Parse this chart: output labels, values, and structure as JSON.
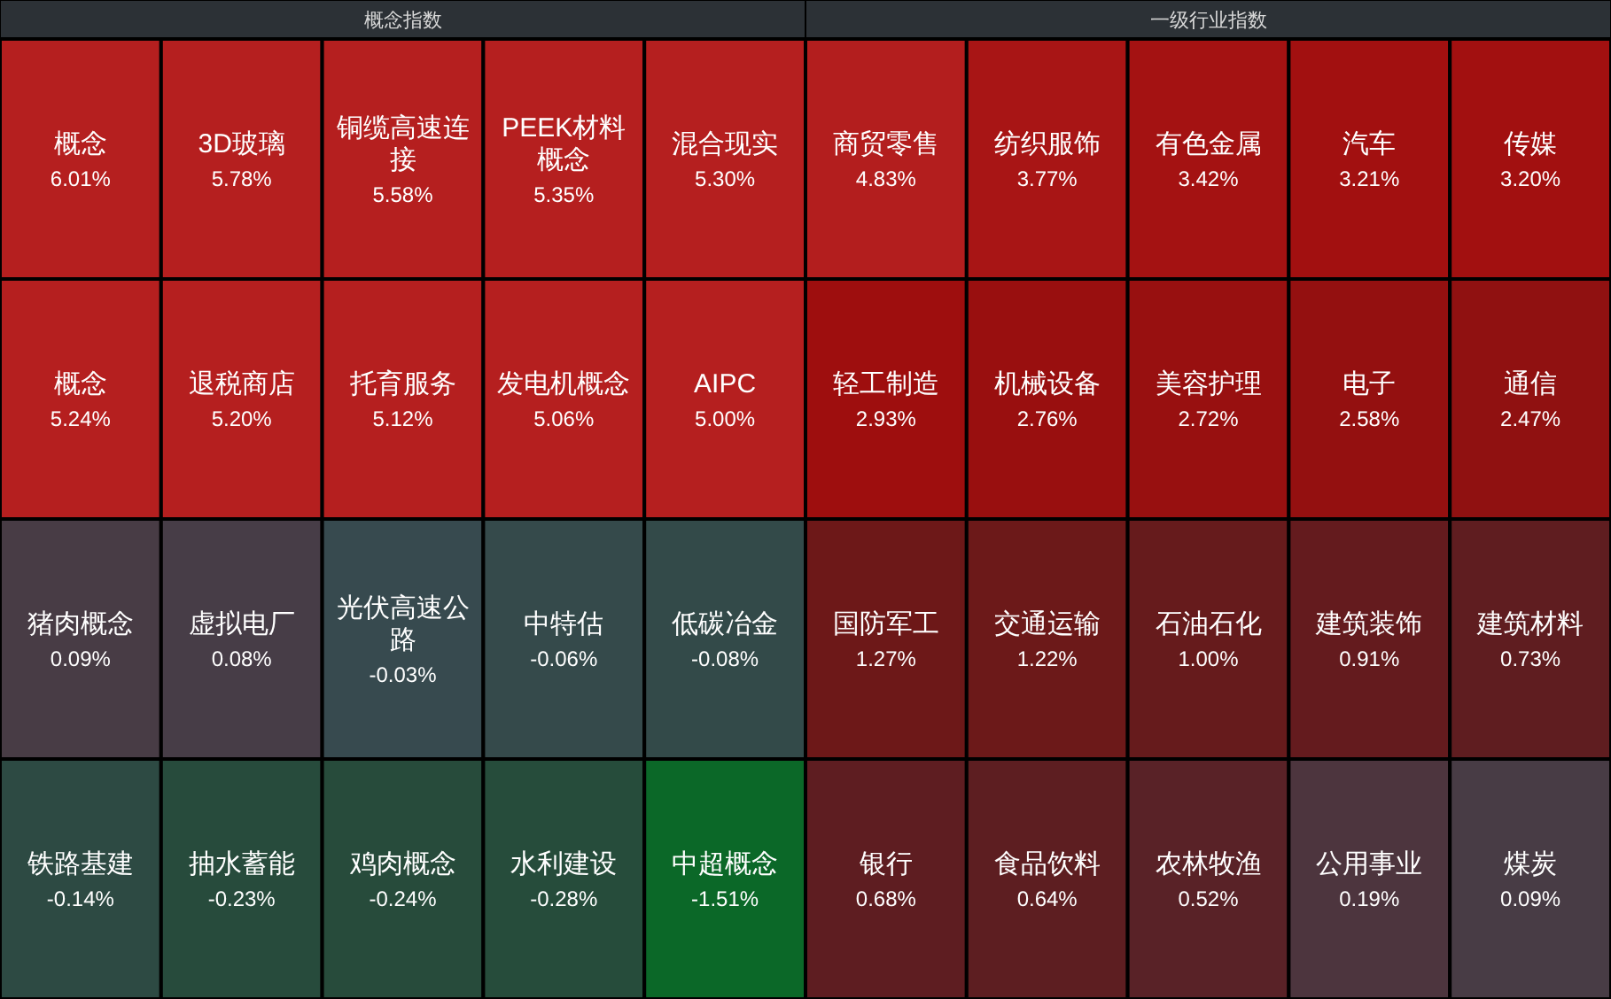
{
  "chart_data": [
    {
      "type": "other",
      "title": "概念指数",
      "categories": [
        "概念",
        "3D玻璃",
        "铜缆高速连接",
        "PEEK材料概念",
        "混合现实",
        "概念",
        "退税商店",
        "托育服务",
        "发电机概念",
        "AIPC",
        "猪肉概念",
        "虚拟电厂",
        "光伏高速公路",
        "中特估",
        "低碳冶金",
        "铁路基建",
        "抽水蓄能",
        "鸡肉概念",
        "水利建设",
        "中超概念"
      ],
      "values": [
        6.01,
        5.78,
        5.58,
        5.35,
        5.3,
        5.24,
        5.2,
        5.12,
        5.06,
        5.0,
        0.09,
        0.08,
        -0.03,
        -0.06,
        -0.08,
        -0.14,
        -0.23,
        -0.24,
        -0.28,
        -1.51
      ],
      "value_labels": [
        "6.01%",
        "5.78%",
        "5.58%",
        "5.35%",
        "5.30%",
        "5.24%",
        "5.20%",
        "5.12%",
        "5.06%",
        "5.00%",
        "0.09%",
        "0.08%",
        "-0.03%",
        "-0.06%",
        "-0.08%",
        "-0.14%",
        "-0.23%",
        "-0.24%",
        "-0.28%",
        "-1.51%"
      ]
    },
    {
      "type": "other",
      "title": "一级行业指数",
      "categories": [
        "商贸零售",
        "纺织服饰",
        "有色金属",
        "汽车",
        "传媒",
        "轻工制造",
        "机械设备",
        "美容护理",
        "电子",
        "通信",
        "国防军工",
        "交通运输",
        "石油石化",
        "建筑装饰",
        "建筑材料",
        "银行",
        "食品饮料",
        "农林牧渔",
        "公用事业",
        "煤炭"
      ],
      "values": [
        4.83,
        3.77,
        3.42,
        3.21,
        3.2,
        2.93,
        2.76,
        2.72,
        2.58,
        2.47,
        1.27,
        1.22,
        1.0,
        0.91,
        0.73,
        0.68,
        0.64,
        0.52,
        0.19,
        0.09
      ],
      "value_labels": [
        "4.83%",
        "3.77%",
        "3.42%",
        "3.21%",
        "3.20%",
        "2.93%",
        "2.76%",
        "2.72%",
        "2.58%",
        "2.47%",
        "1.27%",
        "1.22%",
        "1.00%",
        "0.91%",
        "0.73%",
        "0.68%",
        "0.64%",
        "0.52%",
        "0.19%",
        "0.09%"
      ]
    }
  ]
}
